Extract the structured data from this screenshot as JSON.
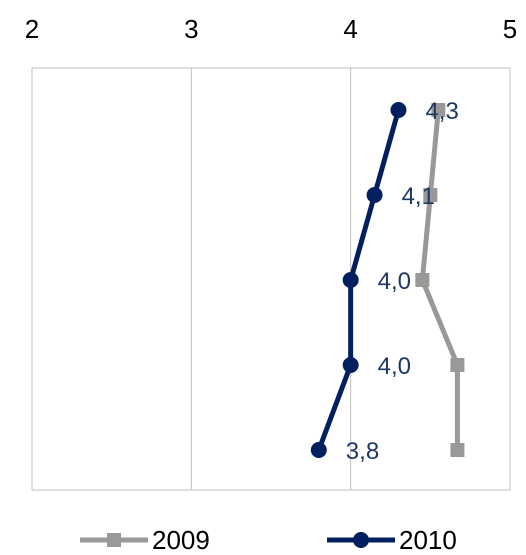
{
  "chart_data": {
    "type": "line",
    "orientation": "horizontal-values",
    "x_axis": {
      "min": 2,
      "max": 5,
      "ticks": [
        "2",
        "3",
        "4",
        "5"
      ],
      "position": "top"
    },
    "rows": 5,
    "grid": true,
    "legend_position": "bottom",
    "series": [
      {
        "name": "2009",
        "color": "#999999",
        "marker": "square",
        "values": [
          4.55,
          4.5,
          4.45,
          4.67,
          4.67
        ]
      },
      {
        "name": "2010",
        "color": "#002060",
        "marker": "circle",
        "values": [
          4.3,
          4.15,
          4.0,
          4.0,
          3.8
        ],
        "labels": [
          "4,3",
          "4,1",
          "4,0",
          "4,0",
          "3,8"
        ]
      }
    ]
  }
}
